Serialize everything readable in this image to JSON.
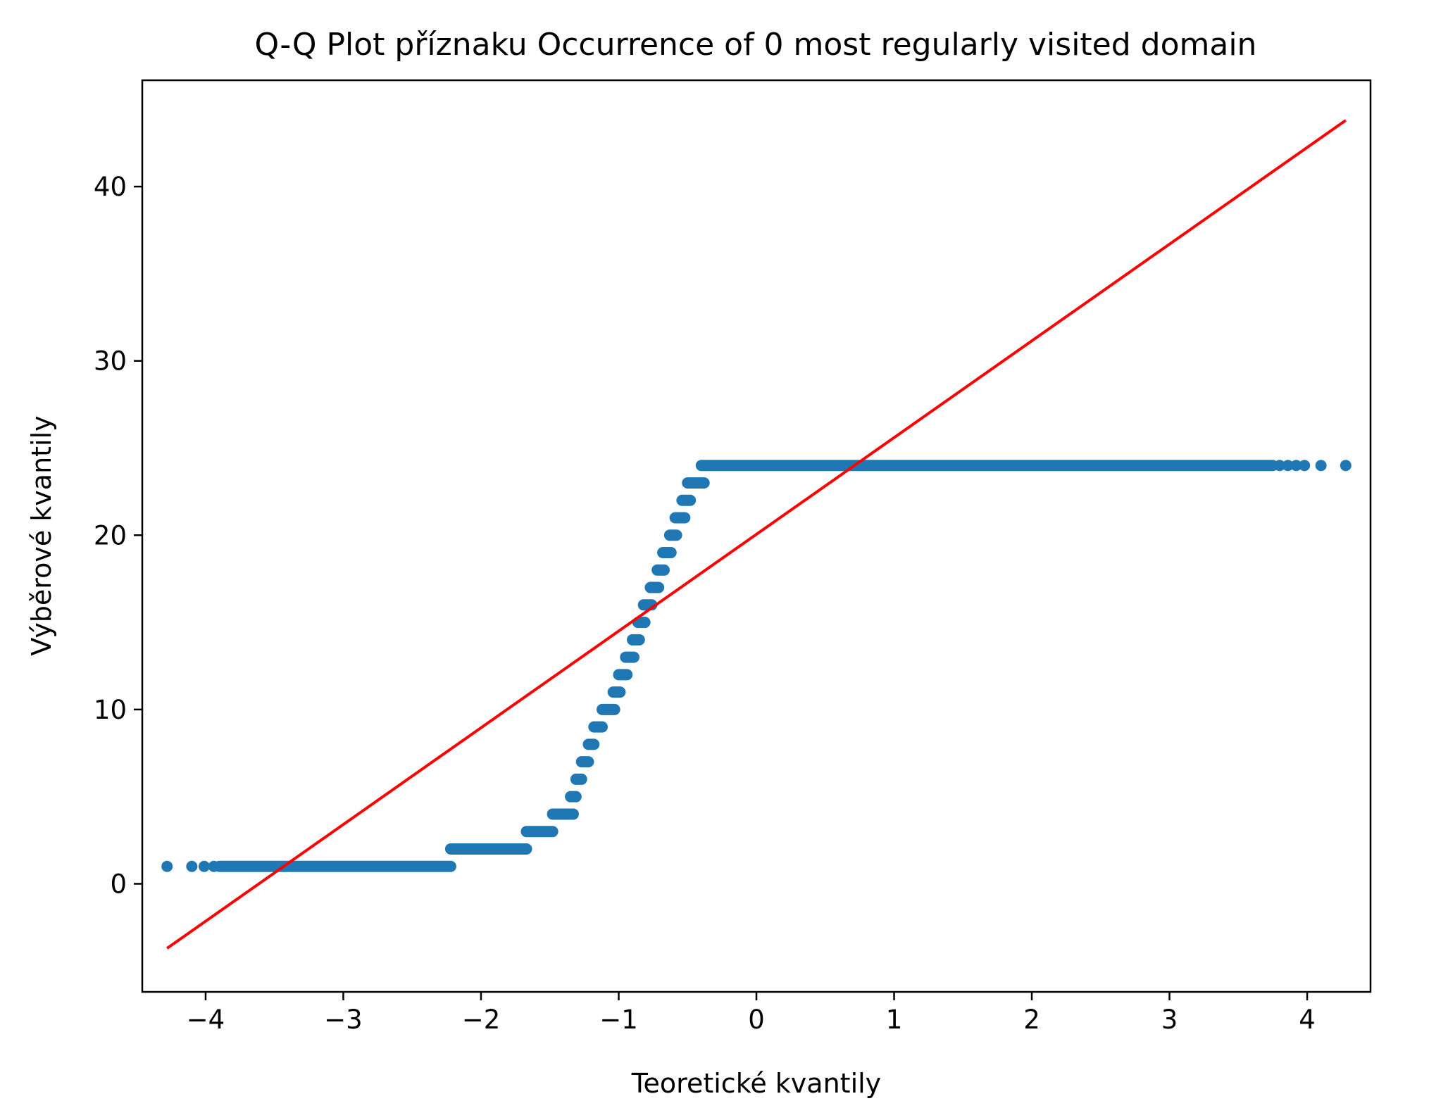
{
  "chart_data": {
    "type": "scatter",
    "title": "Q-Q Plot příznaku  Occurrence of 0 most regularly visited domain",
    "xlabel": "Teoretické kvantily",
    "ylabel": "Výběrové kvantily",
    "xlim": [
      -4.46,
      4.46
    ],
    "ylim": [
      -6.2,
      46.1
    ],
    "xticks": [
      -4,
      -3,
      -2,
      -1,
      0,
      1,
      2,
      3,
      4
    ],
    "xtick_labels": [
      "−4",
      "−3",
      "−2",
      "−1",
      "0",
      "1",
      "2",
      "3",
      "4"
    ],
    "yticks": [
      0,
      10,
      20,
      30,
      40
    ],
    "ytick_labels": [
      "0",
      "10",
      "20",
      "30",
      "40"
    ],
    "grid": false,
    "legend": "none",
    "colors": {
      "points": "#1f77b4",
      "fit_line": "#ff0000"
    },
    "series": [
      {
        "kind": "points",
        "segments": [
          {
            "y": 1,
            "x0": -3.9,
            "x1": -2.22
          },
          {
            "y": 2,
            "x0": -2.22,
            "x1": -1.67
          },
          {
            "y": 3,
            "x0": -1.67,
            "x1": -1.48
          },
          {
            "y": 4,
            "x0": -1.48,
            "x1": -1.33
          },
          {
            "y": 5,
            "x0": -1.35,
            "x1": -1.31
          },
          {
            "y": 6,
            "x0": -1.31,
            "x1": -1.27
          },
          {
            "y": 7,
            "x0": -1.27,
            "x1": -1.22
          },
          {
            "y": 8,
            "x0": -1.22,
            "x1": -1.18
          },
          {
            "y": 9,
            "x0": -1.18,
            "x1": -1.12
          },
          {
            "y": 10,
            "x0": -1.12,
            "x1": -1.03
          },
          {
            "y": 11,
            "x0": -1.04,
            "x1": -0.99
          },
          {
            "y": 12,
            "x0": -1.0,
            "x1": -0.94
          },
          {
            "y": 13,
            "x0": -0.95,
            "x1": -0.89
          },
          {
            "y": 14,
            "x0": -0.9,
            "x1": -0.85
          },
          {
            "y": 15,
            "x0": -0.86,
            "x1": -0.81
          },
          {
            "y": 16,
            "x0": -0.82,
            "x1": -0.76
          },
          {
            "y": 17,
            "x0": -0.77,
            "x1": -0.71
          },
          {
            "y": 18,
            "x0": -0.72,
            "x1": -0.67
          },
          {
            "y": 19,
            "x0": -0.68,
            "x1": -0.62
          },
          {
            "y": 20,
            "x0": -0.63,
            "x1": -0.58
          },
          {
            "y": 21,
            "x0": -0.59,
            "x1": -0.52
          },
          {
            "y": 22,
            "x0": -0.54,
            "x1": -0.48
          },
          {
            "y": 23,
            "x0": -0.5,
            "x1": -0.38
          },
          {
            "y": 24,
            "x0": -0.4,
            "x1": 3.75
          }
        ],
        "isolated": [
          [
            -4.28,
            1
          ],
          [
            -4.1,
            1
          ],
          [
            -4.01,
            1
          ],
          [
            -3.94,
            1
          ],
          [
            3.8,
            24
          ],
          [
            3.86,
            24
          ],
          [
            3.92,
            24
          ],
          [
            3.98,
            24
          ],
          [
            4.1,
            24
          ],
          [
            4.28,
            24
          ]
        ]
      },
      {
        "kind": "line",
        "x": [
          -4.28,
          4.28
        ],
        "y": [
          -3.7,
          43.8
        ]
      }
    ]
  }
}
